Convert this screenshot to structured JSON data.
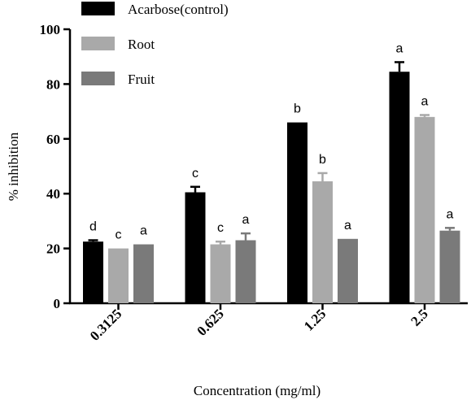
{
  "chart_data": {
    "type": "bar",
    "title": "",
    "xlabel": "Concentration (mg/ml)",
    "ylabel": "% inhibition",
    "ylim": [
      0,
      100
    ],
    "yticks": [
      "0",
      "20",
      "40",
      "60",
      "80",
      "100"
    ],
    "categories": [
      "0.3125",
      "0.625",
      "1.25",
      "2.5"
    ],
    "legend_position": "top-left",
    "grid": false,
    "series": [
      {
        "name": "Acarbose(control)",
        "color": "#000000",
        "values": [
          22.5,
          40.5,
          66,
          84.5
        ],
        "errors": [
          0.5,
          2,
          0,
          3.5
        ],
        "sig": [
          "d",
          "c",
          "b",
          "a"
        ]
      },
      {
        "name": "Root",
        "color": "#a9a9a9",
        "values": [
          20,
          21.5,
          44.5,
          68
        ],
        "errors": [
          0,
          1,
          3,
          0.7
        ],
        "sig": [
          "c",
          "c",
          "b",
          "a"
        ]
      },
      {
        "name": "Fruit",
        "color": "#7a7a7a",
        "values": [
          21.5,
          23,
          23.5,
          26.5
        ],
        "errors": [
          0,
          2.5,
          0,
          1
        ],
        "sig": [
          "a",
          "a",
          "a",
          "a"
        ]
      }
    ]
  }
}
